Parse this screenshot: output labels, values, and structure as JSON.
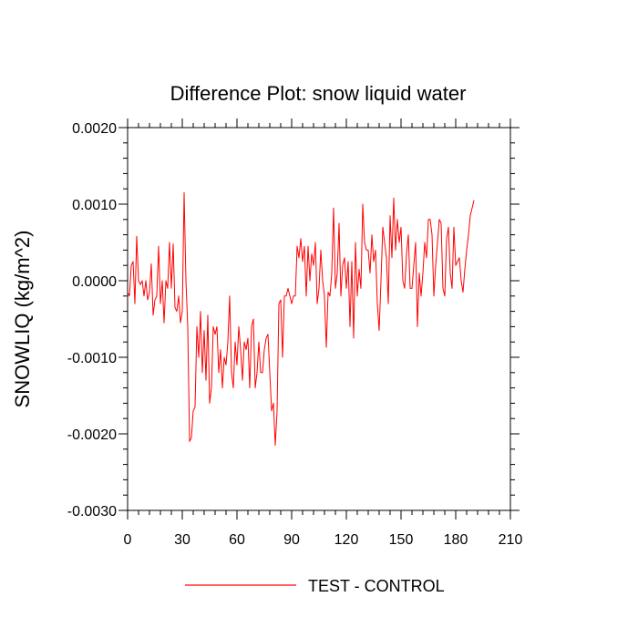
{
  "chart_data": {
    "type": "line",
    "title": "Difference Plot: snow liquid water",
    "xlabel": "",
    "ylabel": "SNOWLIQ  (kg/m^2)",
    "xlim": [
      0,
      210
    ],
    "ylim": [
      -0.003,
      0.002
    ],
    "xticks": [
      0,
      30,
      60,
      90,
      120,
      150,
      180,
      210
    ],
    "xtick_labels": [
      "0",
      "30",
      "60",
      "90",
      "120",
      "150",
      "180",
      "210"
    ],
    "yticks": [
      -0.003,
      -0.002,
      -0.001,
      0.0,
      0.001,
      0.002
    ],
    "ytick_labels": [
      "-0.0030",
      "-0.0020",
      "-0.0010",
      "0.0000",
      "0.0010",
      "0.0020"
    ],
    "legend": {
      "position": "bottom-center",
      "entries": [
        "TEST - CONTROL"
      ]
    },
    "series": [
      {
        "name": "TEST - CONTROL",
        "color": "#ff0000",
        "x_start": 0,
        "x_step": 1,
        "values": [
          -0.00015,
          -0.0002,
          0.0002,
          0.00025,
          -0.0003,
          0.00058,
          0.0,
          -5e-05,
          0.0,
          -0.0002,
          0.0,
          -0.00025,
          -0.00015,
          0.00022,
          -0.00045,
          -0.00025,
          -0.0002,
          0.00045,
          -0.0003,
          0.0,
          -0.00055,
          0.0,
          -0.0001,
          0.0005,
          -0.0001,
          0.00048,
          -0.00035,
          -0.0004,
          -0.0002,
          -0.00055,
          -0.0004,
          0.00115,
          0.0,
          -0.0006,
          -0.0021,
          -0.00205,
          -0.0017,
          -0.00165,
          -0.0006,
          -0.001,
          -0.0004,
          -0.0012,
          -0.00065,
          -0.0013,
          -0.00045,
          -0.0016,
          -0.0014,
          -0.0006,
          -0.0007,
          -0.0006,
          -0.0012,
          -0.0009,
          -0.0014,
          -0.001,
          -0.0011,
          -0.0008,
          -0.0002,
          -0.0012,
          -0.0014,
          -0.0008,
          -0.0011,
          -0.0006,
          -0.0009,
          -0.0013,
          -0.0008,
          -0.0009,
          -0.00075,
          -0.0014,
          -0.0006,
          -0.0005,
          -0.0014,
          -0.0012,
          -0.0008,
          -0.0012,
          -0.0012,
          -0.0009,
          -0.00075,
          -0.0007,
          -0.0012,
          -0.0017,
          -0.0016,
          -0.00215,
          -0.0017,
          -0.0003,
          -0.00025,
          -0.001,
          -0.0002,
          -0.0002,
          -0.0001,
          -0.0002,
          -0.0003,
          -0.0002,
          -0.0002,
          0.00045,
          0.0003,
          0.00055,
          0.00025,
          0.00045,
          -0.0002,
          0.00045,
          0.0,
          0.00035,
          0.0002,
          0.0005,
          -0.0003,
          -0.0001,
          0.0004,
          0.0,
          -0.0002,
          -0.00087,
          -0.00015,
          -0.0002,
          0.0001,
          0.00095,
          -0.0001,
          0.0001,
          0.00075,
          -0.0002,
          0.0002,
          0.0003,
          -0.0001,
          0.00025,
          -0.0006,
          0.00025,
          -0.00075,
          0.0005,
          -0.0002,
          0.00015,
          -0.0001,
          0.001,
          0.0005,
          0.0004,
          0.0004,
          0.0001,
          0.0006,
          0.00025,
          0.0004,
          -0.0003,
          -0.00065,
          0.0,
          0.0007,
          0.0005,
          0.0003,
          -0.0003,
          0.00085,
          0.0003,
          0.00108,
          0.0004,
          0.0008,
          0.0005,
          0.0007,
          0.0,
          -0.0001,
          0.00035,
          0.0006,
          -0.0001,
          -0.0001,
          0.0002,
          0.0005,
          -0.0006,
          0.0001,
          -0.0002,
          0.0001,
          0.0005,
          0.0003,
          0.0008,
          0.0008,
          0.0006,
          -0.0002,
          0.0002,
          0.0005,
          0.0008,
          0.00075,
          -0.0001,
          -0.0002,
          0.00055,
          0.0007,
          0.0001,
          -0.0001,
          0.0007,
          0.0002,
          0.00025,
          0.0003,
          0.0,
          -0.00015,
          0.00015,
          0.0004,
          0.0006,
          0.00085,
          0.00095,
          0.00105
        ]
      }
    ]
  }
}
